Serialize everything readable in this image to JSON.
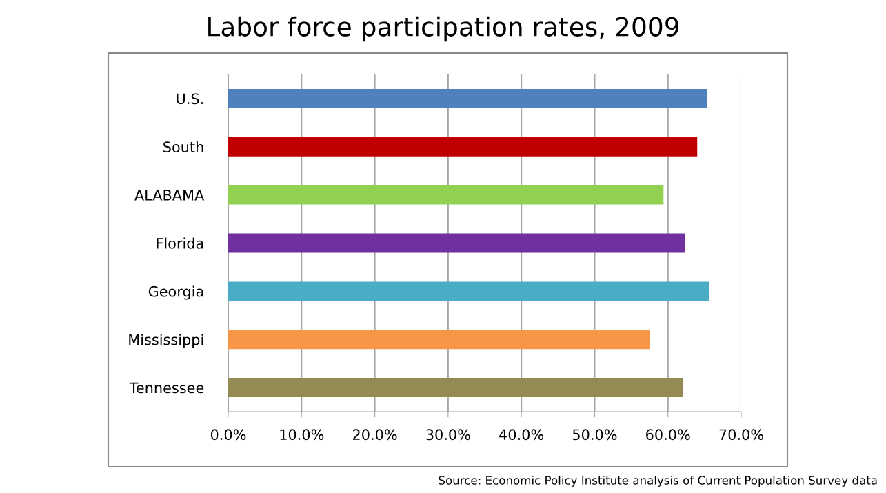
{
  "chart_data": {
    "type": "bar",
    "orientation": "horizontal",
    "title": "Labor force participation rates, 2009",
    "categories": [
      "U.S.",
      "South",
      "ALABAMA",
      "Florida",
      "Georgia",
      "Mississippi",
      "Tennessee"
    ],
    "values": [
      65.3,
      64.0,
      59.4,
      62.3,
      65.6,
      57.5,
      62.1
    ],
    "colors": [
      "#4f81bd",
      "#c00000",
      "#92d050",
      "#7030a0",
      "#4bacc6",
      "#f79646",
      "#948a54"
    ],
    "xlim": [
      0,
      70
    ],
    "xticks": [
      {
        "value": 0,
        "label": "0.0%"
      },
      {
        "value": 10,
        "label": "10.0%"
      },
      {
        "value": 20,
        "label": "20.0%"
      },
      {
        "value": 30,
        "label": "30.0%"
      },
      {
        "value": 40,
        "label": "40.0%"
      },
      {
        "value": 50,
        "label": "50.0%"
      },
      {
        "value": 60,
        "label": "60.0%"
      },
      {
        "value": 70,
        "label": "70.0%"
      }
    ],
    "grid": "x",
    "annotations": [
      "Source: Economic Policy Institute analysis of Current Population Survey data"
    ]
  }
}
